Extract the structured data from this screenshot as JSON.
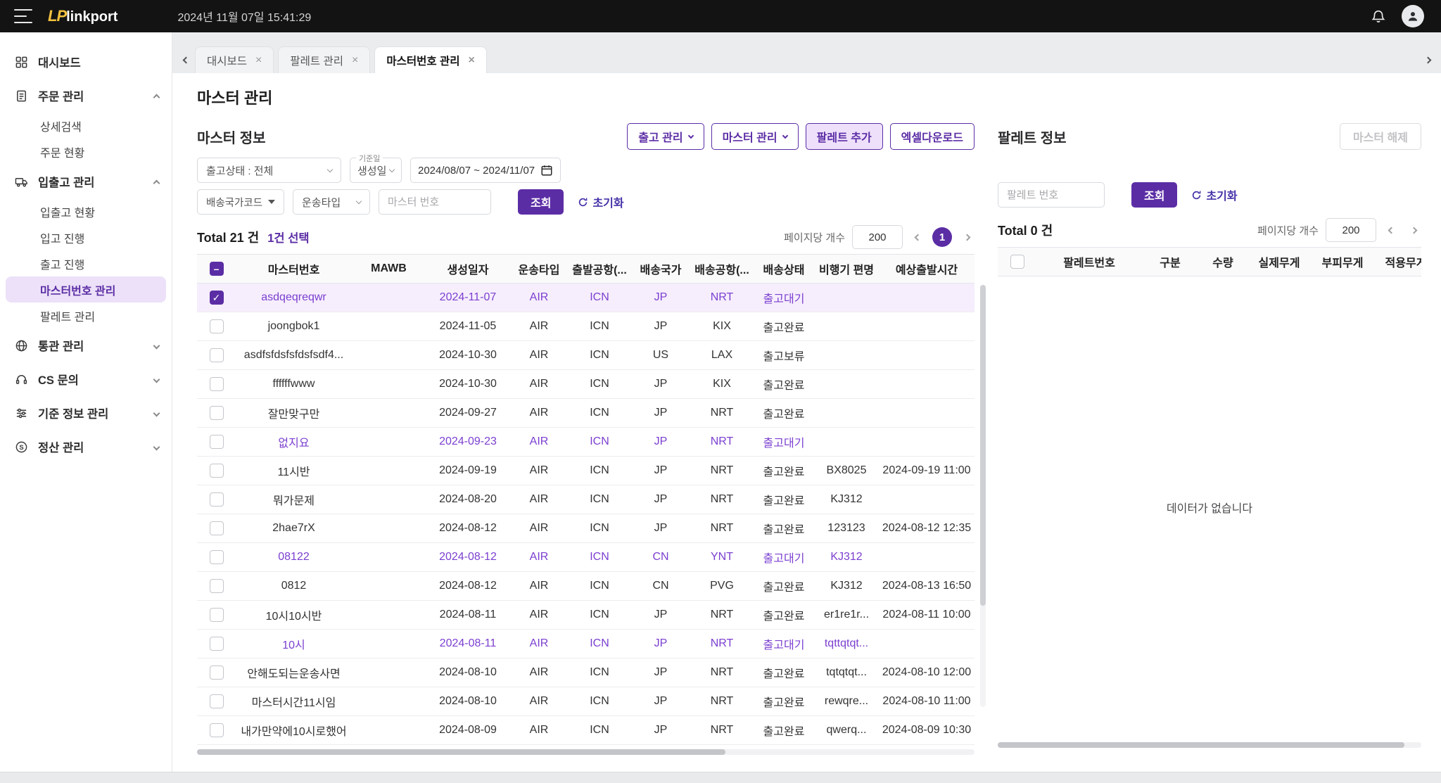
{
  "glyphs": {
    "close": "×",
    "check": "✓",
    "dash": "–"
  },
  "topbar": {
    "logo_lp": "LP",
    "logo_text": "linkport",
    "datetime": "2024년 11월 07일 15:41:29"
  },
  "sidebar": {
    "items": [
      {
        "label": "대시보드"
      },
      {
        "label": "주문 관리",
        "children": [
          "상세검색",
          "주문 현황"
        ]
      },
      {
        "label": "입출고 관리",
        "children": [
          "입출고 현황",
          "입고 진행",
          "출고 진행",
          "마스터번호 관리",
          "팔레트 관리"
        ]
      },
      {
        "label": "통관 관리"
      },
      {
        "label": "CS 문의"
      },
      {
        "label": "기준 정보 관리"
      },
      {
        "label": "정산 관리"
      }
    ]
  },
  "tabs": [
    {
      "label": "대시보드"
    },
    {
      "label": "팔레트 관리"
    },
    {
      "label": "마스터번호 관리"
    }
  ],
  "page": {
    "title": "마스터 관리"
  },
  "master_panel": {
    "section_title": "마스터 정보",
    "toolbar": {
      "shipping_mgmt": "출고 관리",
      "master_mgmt": "마스터 관리",
      "add_pallet": "팔레트 추가",
      "excel_download": "엑셀다운로드"
    },
    "filters": {
      "status_select": "출고상태 : 전체",
      "date_type_label": "기준일",
      "date_type_select": "생성일",
      "date_range": "2024/08/07 ~ 2024/11/07",
      "country_select": "배송국가코드",
      "transport_select": "운송타입",
      "master_no_placeholder": "마스터 번호",
      "search_btn": "조회",
      "reset_btn": "초기화"
    },
    "summary": {
      "total": "Total 21 건",
      "selected": "1건 선택"
    },
    "pagination": {
      "per_page_label": "페이지당 개수",
      "per_page": "200",
      "page": "1"
    },
    "table": {
      "columns": [
        "마스터번호",
        "MAWB",
        "생성일자",
        "운송타입",
        "출발공항(...",
        "배송국가",
        "배송공항(...",
        "배송상태",
        "비행기 편명",
        "예상출발시간"
      ],
      "rows": [
        {
          "checked": true,
          "selected": true,
          "pending": true,
          "cells": [
            "asdqeqreqwr",
            "",
            "2024-11-07",
            "AIR",
            "ICN",
            "JP",
            "NRT",
            "출고대기",
            "",
            ""
          ]
        },
        {
          "cells": [
            "joongbok1",
            "",
            "2024-11-05",
            "AIR",
            "ICN",
            "JP",
            "KIX",
            "출고완료",
            "",
            ""
          ]
        },
        {
          "cells": [
            "asdfsfdsfsfdsfsdf4...",
            "",
            "2024-10-30",
            "AIR",
            "ICN",
            "US",
            "LAX",
            "출고보류",
            "",
            ""
          ]
        },
        {
          "cells": [
            "ffffffwww",
            "",
            "2024-10-30",
            "AIR",
            "ICN",
            "JP",
            "KIX",
            "출고완료",
            "",
            ""
          ]
        },
        {
          "cells": [
            "잘만맞구만",
            "",
            "2024-09-27",
            "AIR",
            "ICN",
            "JP",
            "NRT",
            "출고완료",
            "",
            ""
          ]
        },
        {
          "pending": true,
          "cells": [
            "없지요",
            "",
            "2024-09-23",
            "AIR",
            "ICN",
            "JP",
            "NRT",
            "출고대기",
            "",
            ""
          ]
        },
        {
          "cells": [
            "11시반",
            "",
            "2024-09-19",
            "AIR",
            "ICN",
            "JP",
            "NRT",
            "출고완료",
            "BX8025",
            "2024-09-19 11:00"
          ]
        },
        {
          "cells": [
            "뭐가문제",
            "",
            "2024-08-20",
            "AIR",
            "ICN",
            "JP",
            "NRT",
            "출고완료",
            "KJ312",
            ""
          ]
        },
        {
          "cells": [
            "2hae7rX",
            "",
            "2024-08-12",
            "AIR",
            "ICN",
            "JP",
            "NRT",
            "출고완료",
            "123123",
            "2024-08-12 12:35"
          ]
        },
        {
          "pending": true,
          "cells": [
            "08122",
            "",
            "2024-08-12",
            "AIR",
            "ICN",
            "CN",
            "YNT",
            "출고대기",
            "KJ312",
            ""
          ]
        },
        {
          "cells": [
            "0812",
            "",
            "2024-08-12",
            "AIR",
            "ICN",
            "CN",
            "PVG",
            "출고완료",
            "KJ312",
            "2024-08-13 16:50"
          ]
        },
        {
          "cells": [
            "10시10시반",
            "",
            "2024-08-11",
            "AIR",
            "ICN",
            "JP",
            "NRT",
            "출고완료",
            "er1re1r...",
            "2024-08-11 10:00"
          ]
        },
        {
          "pending": true,
          "cells": [
            "10시",
            "",
            "2024-08-11",
            "AIR",
            "ICN",
            "JP",
            "NRT",
            "출고대기",
            "tqttqtqt...",
            ""
          ]
        },
        {
          "cells": [
            "안해도되는운송사면",
            "",
            "2024-08-10",
            "AIR",
            "ICN",
            "JP",
            "NRT",
            "출고완료",
            "tqtqtqt...",
            "2024-08-10 12:00"
          ]
        },
        {
          "cells": [
            "마스터시간11시임",
            "",
            "2024-08-10",
            "AIR",
            "ICN",
            "JP",
            "NRT",
            "출고완료",
            "rewqre...",
            "2024-08-10 11:00"
          ]
        },
        {
          "cells": [
            "내가만약에10시로했어",
            "",
            "2024-08-09",
            "AIR",
            "ICN",
            "JP",
            "NRT",
            "출고완료",
            "qwerq...",
            "2024-08-09 10:30"
          ]
        }
      ]
    }
  },
  "pallet_panel": {
    "section_title": "팔레트 정보",
    "release_btn": "마스터 해제",
    "filters": {
      "pallet_no_placeholder": "팔레트 번호",
      "search_btn": "조회",
      "reset_btn": "초기화"
    },
    "summary": {
      "total": "Total 0 건"
    },
    "pagination": {
      "per_page_label": "페이지당 개수",
      "per_page": "200"
    },
    "table": {
      "columns": [
        "팔레트번호",
        "구분",
        "수량",
        "실제무게",
        "부피무게",
        "적용무게"
      ],
      "empty_text": "데이터가 없습니다"
    }
  }
}
